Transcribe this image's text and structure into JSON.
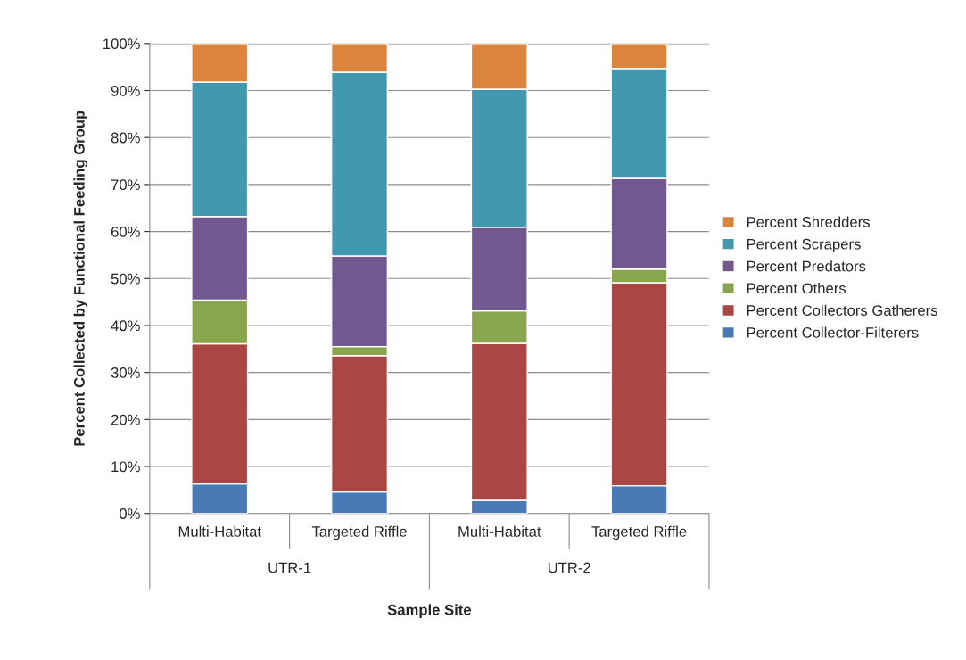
{
  "chart_data": {
    "type": "bar",
    "stacked": true,
    "xlabel": "Sample Site",
    "ylabel": "Percent Collected by Functional Feeding Group",
    "categories": [
      "Multi-Habitat",
      "Targeted Riffle",
      "Multi-Habitat",
      "Targeted Riffle"
    ],
    "annotations": [
      "UTR-1",
      "UTR-2"
    ],
    "series": [
      {
        "name": "Percent Collector-Filterers",
        "color": "#4a7ab5",
        "values": [
          6.3,
          4.6,
          2.8,
          5.9
        ]
      },
      {
        "name": "Percent Collectors Gatherers",
        "color": "#aa4643",
        "values": [
          29.8,
          29.0,
          33.4,
          43.2
        ]
      },
      {
        "name": "Percent Others",
        "color": "#89a54e",
        "values": [
          9.3,
          1.9,
          6.9,
          2.9
        ]
      },
      {
        "name": "Percent Predators",
        "color": "#71588f",
        "values": [
          17.8,
          19.3,
          17.8,
          19.3
        ]
      },
      {
        "name": "Percent Scrapers",
        "color": "#4198af",
        "values": [
          28.6,
          39.1,
          29.4,
          23.4
        ]
      },
      {
        "name": "Percent Shredders",
        "color": "#db843d",
        "values": [
          8.2,
          6.1,
          9.7,
          5.3
        ]
      }
    ],
    "ylim": [
      0,
      100
    ],
    "yticks": [
      {
        "value": 0,
        "label": "0%"
      },
      {
        "value": 10,
        "label": "10%"
      },
      {
        "value": 20,
        "label": "20%"
      },
      {
        "value": 30,
        "label": "30%"
      },
      {
        "value": 40,
        "label": "40%"
      },
      {
        "value": 50,
        "label": "50%"
      },
      {
        "value": 60,
        "label": "60%"
      },
      {
        "value": 70,
        "label": "70%"
      },
      {
        "value": 80,
        "label": "80%"
      },
      {
        "value": 90,
        "label": "90%"
      },
      {
        "value": 100,
        "label": "100%"
      }
    ],
    "grid": "y",
    "legend": "right"
  }
}
